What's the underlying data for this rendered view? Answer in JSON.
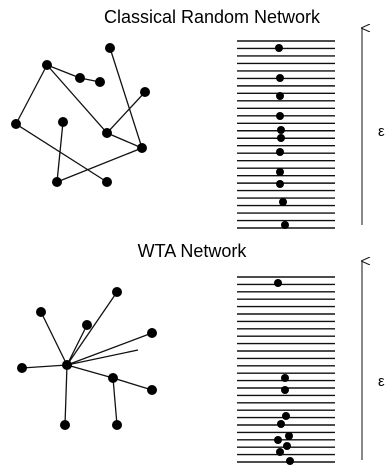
{
  "panels": [
    {
      "title": "Classical Random Network",
      "axis_label": "ε"
    },
    {
      "title": "WTA Network",
      "axis_label": "ε"
    }
  ]
}
